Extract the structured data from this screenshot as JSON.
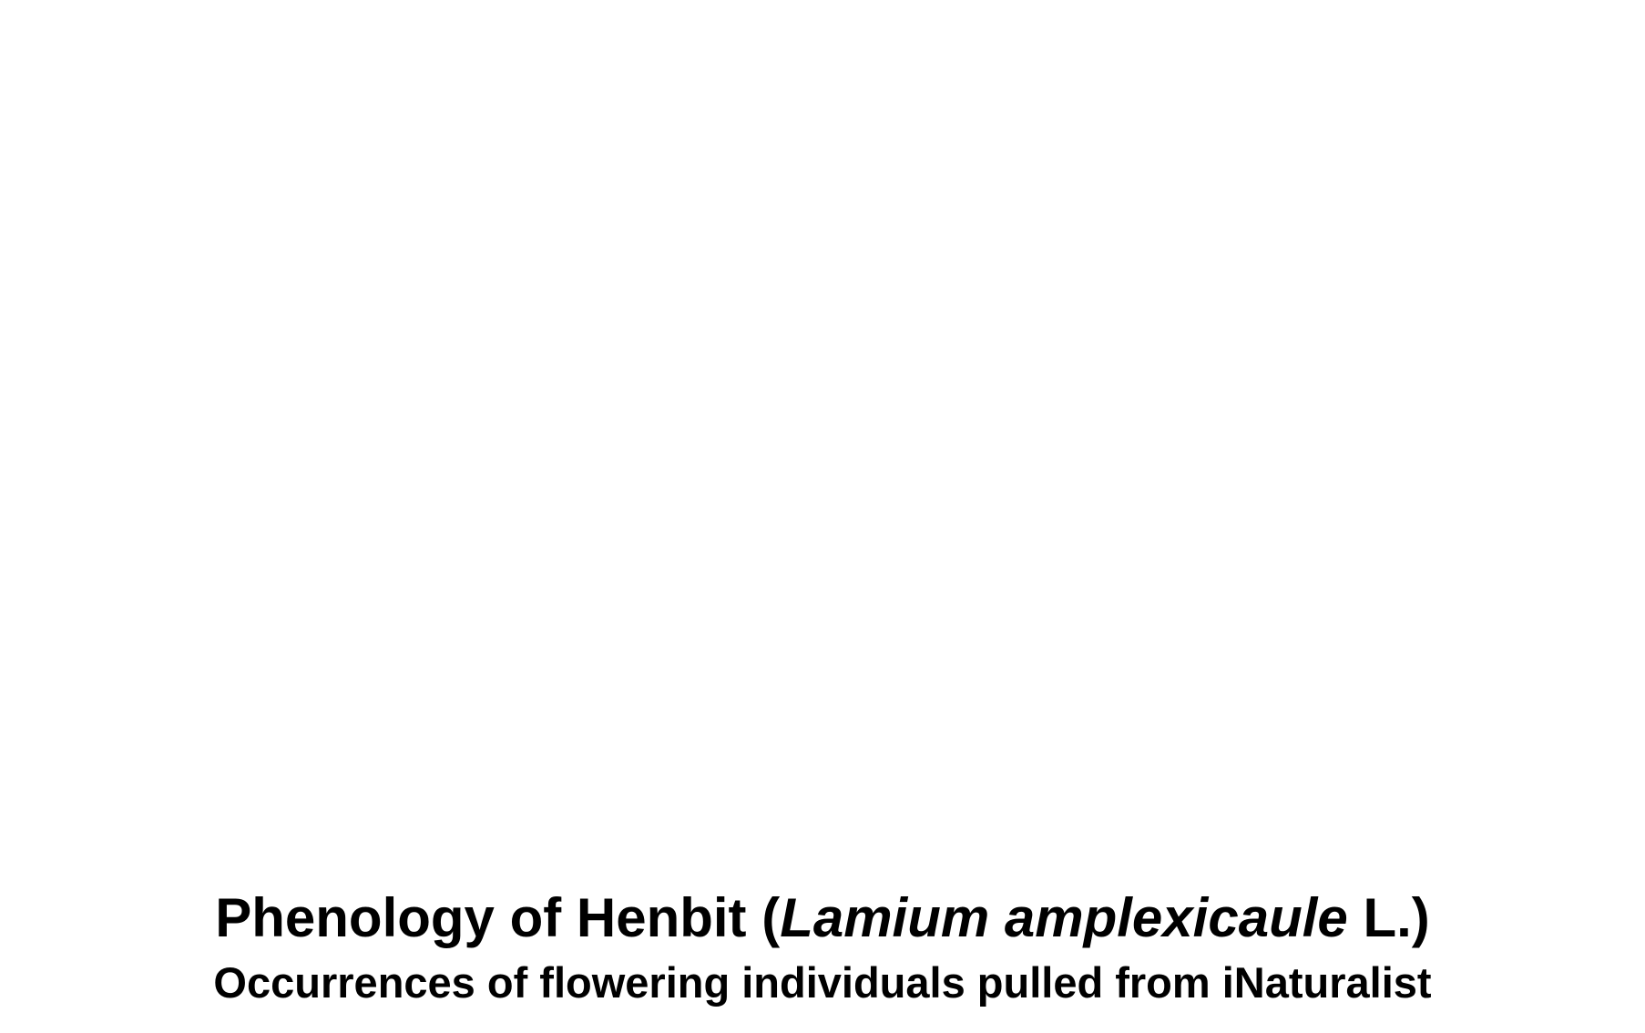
{
  "slide": {
    "title": {
      "prefix": "Phenology of Henbit (",
      "species": "Lamium amplexicaule",
      "suffix": " L.)"
    },
    "subtitle": "Occurrences of flowering individuals pulled from iNaturalist"
  },
  "colors": {
    "background": "#ffffff",
    "text": "#000000"
  }
}
